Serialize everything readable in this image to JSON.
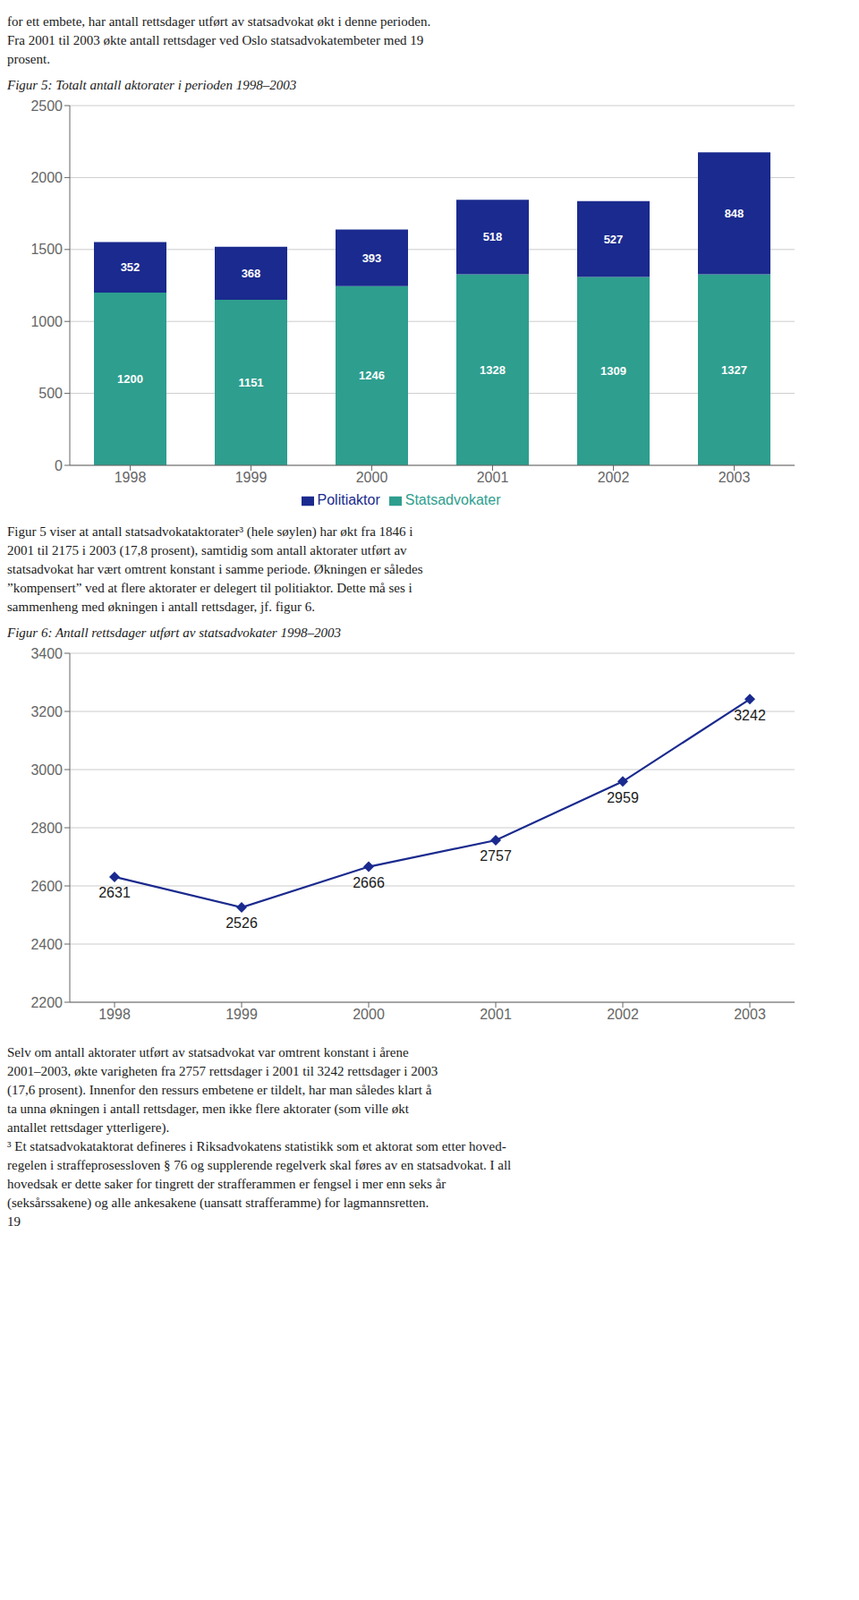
{
  "chart_data": [
    {
      "type": "bar",
      "title": "Figur 5: Totalt antall aktorater i perioden 1998–2003",
      "annotations": [
        "for ett embete, har antall rettsdager utført av statsadvokat økt i denne perioden.",
        "Fra 2001 til 2003 økte antall rettsdager ved Oslo statsadvokatembeter med 19",
        "prosent."
      ],
      "categories": [
        "1998",
        "1999",
        "2000",
        "2001",
        "2002",
        "2003"
      ],
      "series": [
        {
          "name": "Statsadvokater",
          "color": "#2e9e8e",
          "values": [
            1200,
            1151,
            1246,
            1328,
            1309,
            1327
          ]
        },
        {
          "name": "Politiaktor",
          "color": "#1a2a8e",
          "values": [
            352,
            368,
            393,
            518,
            527,
            848
          ]
        }
      ],
      "stacked": true,
      "data_labels": true,
      "ylim": [
        0,
        2500
      ],
      "yticks": [
        0,
        500,
        1000,
        1500,
        2000,
        2500
      ],
      "grid": true,
      "legend": "bottom"
    },
    {
      "type": "line",
      "title": "Figur 6: Antall rettsdager utført av statsadvokater 1998–2003",
      "annotations": [
        "Figur 5 viser at antall statsadvokataktorater³ (hele søylen) har økt fra 1846 i",
        "2001 til 2175 i 2003 (17,8 prosent), samtidig som antall aktorater utført av",
        "statsadvokat har vært omtrent konstant i samme periode. Økningen er således",
        "”kompensert” ved at flere aktorater er delegert til politiaktor. Dette må ses i",
        "sammenheng med økningen i antall rettsdager, jf. figur 6."
      ],
      "categories": [
        "1998",
        "1999",
        "2000",
        "2001",
        "2002",
        "2003"
      ],
      "values": [
        2631,
        2526,
        2666,
        2757,
        2959,
        3242
      ],
      "color": "#1a2a8e",
      "marker": "diamond",
      "line_style": "solid",
      "data_labels": true,
      "ylim": [
        2200,
        3400
      ],
      "yticks": [
        2200,
        2400,
        2600,
        2800,
        3000,
        3200,
        3400
      ],
      "grid": true
    }
  ],
  "annotations": [
    "Selv om antall aktorater utført av statsadvokat var omtrent konstant i årene",
    "2001–2003, økte varigheten fra 2757 rettsdager i 2001 til 3242 rettsdager i 2003",
    "(17,6 prosent). Innenfor den ressurs embetene er tildelt, har man således klart å",
    "ta unna økningen i antall rettsdager, men ikke flere aktorater (som ville økt",
    "antallet rettsdager ytterligere).",
    "³ Et statsadvokataktorat defineres i Riksadvokatens statistikk som et aktorat som etter hoved-",
    "regelen i straffeprosessloven § 76 og supplerende regelverk skal føres av en statsadvokat. I all",
    "hovedsak er dette saker for tingrett der strafferammen er fengsel i mer enn seks år",
    "(seksårssakene) og alle ankesakene (uansatt strafferamme) for lagmannsretten.",
    "19"
  ]
}
